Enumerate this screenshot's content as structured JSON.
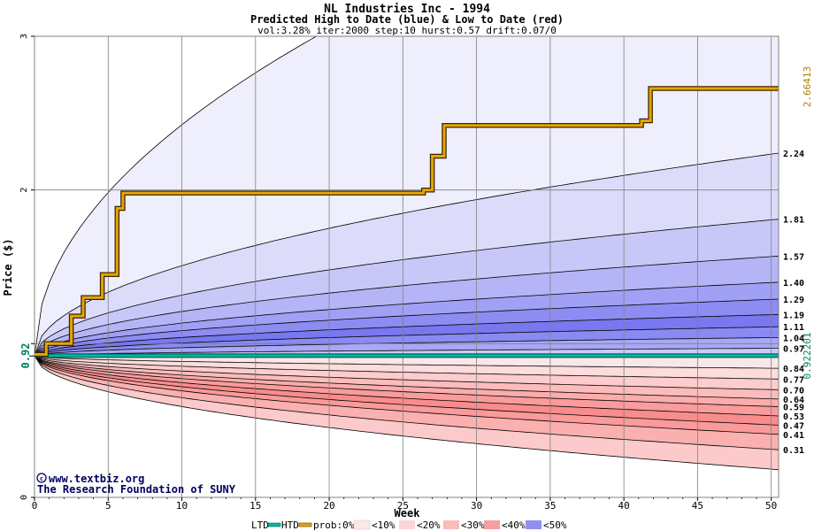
{
  "chart_data": {
    "type": "area",
    "title": "NL Industries Inc - 1994",
    "subtitle": "Predicted High to Date (blue) &  Low to Date (red)",
    "params": "vol:3.28% iter:2000 step:10 hurst:0.57 drift:0.07/0",
    "xlabel": "Week",
    "ylabel": "Price ($)",
    "xlim": [
      0,
      50.5
    ],
    "ylim": [
      0,
      3
    ],
    "x_ticks": [
      0,
      5,
      10,
      15,
      20,
      25,
      30,
      35,
      40,
      45,
      50
    ],
    "y_ticks": [
      0,
      1,
      2,
      3
    ],
    "y_tick_labels": [
      "0",
      "",
      "2",
      "3"
    ],
    "grid": true,
    "start_price": 0.92,
    "start_price_label": "0.92",
    "high_to_date_final": 2.66413,
    "high_to_date_final_label": "2.66413",
    "low_to_date_final": 0.922201,
    "low_to_date_final_label": "0.922201",
    "upper_quantiles": [
      2.24,
      1.81,
      1.57,
      1.4,
      1.29,
      1.19,
      1.11,
      1.04,
      0.97
    ],
    "upper_quantile_labels": [
      "2.24",
      "1.81",
      "1.57",
      "1.40",
      "1.29",
      "1.19",
      "1.11",
      "1.04",
      "0.97"
    ],
    "lower_quantiles": [
      0.84,
      0.77,
      0.7,
      0.64,
      0.59,
      0.53,
      0.47,
      0.41,
      0.31
    ],
    "lower_quantile_labels": [
      "0.84",
      "0.77",
      "0.70",
      "0.64",
      "0.59",
      "0.53",
      "0.47",
      "0.41",
      "0.31"
    ],
    "outer_upper_quantile": 4.3,
    "outer_lower_quantile": 0.18,
    "band_colors_blue": [
      "#eeeefc",
      "#dcdcfa",
      "#c8c8f8",
      "#b4b4f6",
      "#a0a0f4",
      "#8c8cf2",
      "#7878f0",
      "#8a8af2",
      "#a8a8f6",
      "#cacafa"
    ],
    "band_colors_red": [
      "#f8e8e8",
      "#fddcdc",
      "#fdcccc",
      "#fcbcbc",
      "#fbacac",
      "#fa9c9c",
      "#f98c8c",
      "#fa9a9a",
      "#fbb0b0",
      "#fccaca"
    ],
    "high_to_date_steps": [
      [
        0,
        0.93
      ],
      [
        0.8,
        1.0
      ],
      [
        2.5,
        1.18
      ],
      [
        3.3,
        1.3
      ],
      [
        4.6,
        1.45
      ],
      [
        5.6,
        1.88
      ],
      [
        6.0,
        1.98
      ],
      [
        26.4,
        2.0
      ],
      [
        27.0,
        2.22
      ],
      [
        27.8,
        2.42
      ],
      [
        41.2,
        2.45
      ],
      [
        41.8,
        2.66
      ],
      [
        50.5,
        2.664
      ]
    ],
    "high_to_date_line_color": "#e8a400",
    "low_to_date_line_color": "#00b8a0",
    "watermark_line1": "www.textbiz.org",
    "watermark_line2": "The Research Foundation of SUNY",
    "legend": {
      "ltd": "LTD",
      "htd": "HTD",
      "prob": "prob:0%",
      "items": [
        "<10%",
        "<20%",
        "<30%",
        "<40%",
        "<50%"
      ]
    }
  }
}
